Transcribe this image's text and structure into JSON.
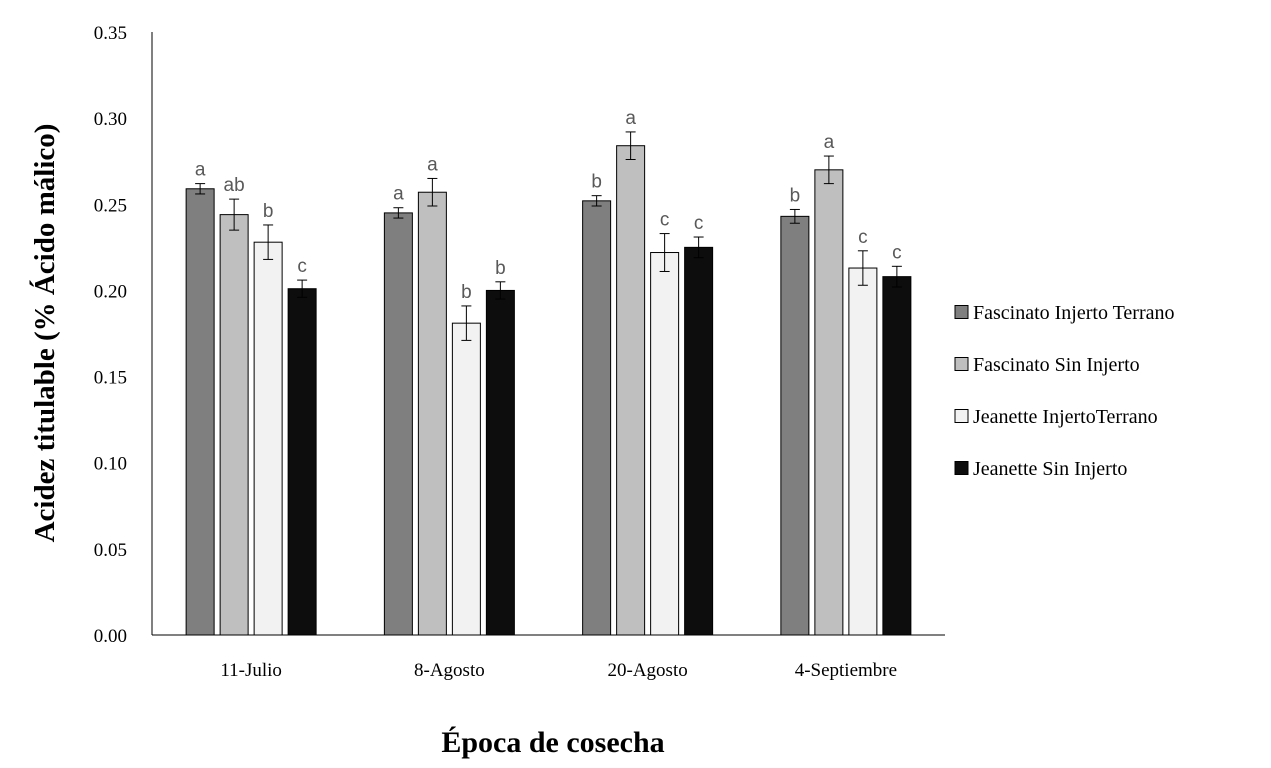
{
  "chart_data": {
    "type": "bar",
    "xlabel": "Época de cosecha",
    "ylabel": "Acidez titulable (% Ácido málico)",
    "ylim": [
      0,
      0.35
    ],
    "ytick_step": 0.05,
    "yticks": [
      "0.00",
      "0.05",
      "0.10",
      "0.15",
      "0.20",
      "0.25",
      "0.30",
      "0.35"
    ],
    "categories": [
      "11-Julio",
      "8-Agosto",
      "20-Agosto",
      "4-Septiembre"
    ],
    "grid": false,
    "legend_position": "right",
    "series": [
      {
        "name": "Fascinato Injerto Terrano",
        "color": "#7f7f7f",
        "values": [
          0.259,
          0.245,
          0.252,
          0.243
        ],
        "errors": [
          0.003,
          0.003,
          0.003,
          0.004
        ],
        "labels": [
          "a",
          "a",
          "b",
          "b"
        ]
      },
      {
        "name": "Fascinato Sin Injerto",
        "color": "#bfbfbf",
        "values": [
          0.244,
          0.257,
          0.284,
          0.27
        ],
        "errors": [
          0.009,
          0.008,
          0.008,
          0.008
        ],
        "labels": [
          "ab",
          "a",
          "a",
          "a"
        ]
      },
      {
        "name": "Jeanette InjertoTerrano",
        "color": "#f2f2f2",
        "values": [
          0.228,
          0.181,
          0.222,
          0.213
        ],
        "errors": [
          0.01,
          0.01,
          0.011,
          0.01
        ],
        "labels": [
          "b",
          "b",
          "c",
          "c"
        ]
      },
      {
        "name": "Jeanette Sin Injerto",
        "color": "#0d0d0d",
        "values": [
          0.201,
          0.2,
          0.225,
          0.208
        ],
        "errors": [
          0.005,
          0.005,
          0.006,
          0.006
        ],
        "labels": [
          "c",
          "b",
          "c",
          "c"
        ]
      }
    ]
  }
}
